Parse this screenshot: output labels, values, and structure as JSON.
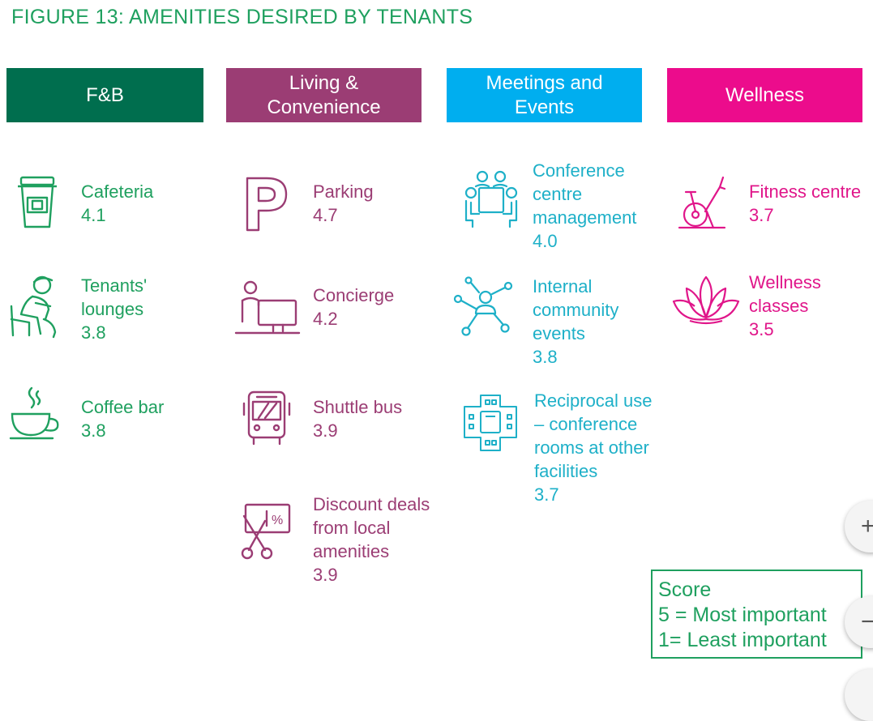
{
  "title": "FIGURE 13: AMENITIES DESIRED BY TENANTS",
  "colors": {
    "fb": "#006e4e",
    "fb_text": "#1fa05f",
    "living": "#9b3d74",
    "living_text": "#9b3d74",
    "meetings": "#00aeef",
    "meetings_text": "#1eb0c8",
    "wellness": "#ec0c8c",
    "wellness_text": "#e0168a"
  },
  "categories": [
    {
      "label": "F&B",
      "items": [
        {
          "name": "Cafeteria",
          "score": "4.1",
          "icon": "coffee-cup-icon"
        },
        {
          "name": "Tenants' lounges",
          "score": "3.8",
          "icon": "person-lounging-icon"
        },
        {
          "name": "Coffee bar",
          "score": "3.8",
          "icon": "hot-drink-icon"
        }
      ]
    },
    {
      "label": "Living & Convenience",
      "items": [
        {
          "name": "Parking",
          "score": "4.7",
          "icon": "parking-icon"
        },
        {
          "name": "Concierge",
          "score": "4.2",
          "icon": "concierge-desk-icon"
        },
        {
          "name": "Shuttle bus",
          "score": "3.9",
          "icon": "bus-icon"
        },
        {
          "name": "Discount deals from local amenities",
          "score": "3.9",
          "icon": "discount-coupon-icon"
        }
      ]
    },
    {
      "label": "Meetings and Events",
      "items": [
        {
          "name": "Conference centre management",
          "score": "4.0",
          "icon": "conference-table-icon"
        },
        {
          "name": "Internal community events",
          "score": "3.8",
          "icon": "network-icon"
        },
        {
          "name": "Reciprocal use – conference rooms at other facilities",
          "score": "3.7",
          "icon": "meeting-room-plan-icon"
        }
      ]
    },
    {
      "label": "Wellness",
      "items": [
        {
          "name": "Fitness centre",
          "score": "3.7",
          "icon": "exercise-bike-icon"
        },
        {
          "name": "Wellness classes",
          "score": "3.5",
          "icon": "lotus-icon"
        }
      ]
    }
  ],
  "legend": {
    "line1": "Score",
    "line2": "5 = Most important",
    "line3": "1= Least important"
  }
}
